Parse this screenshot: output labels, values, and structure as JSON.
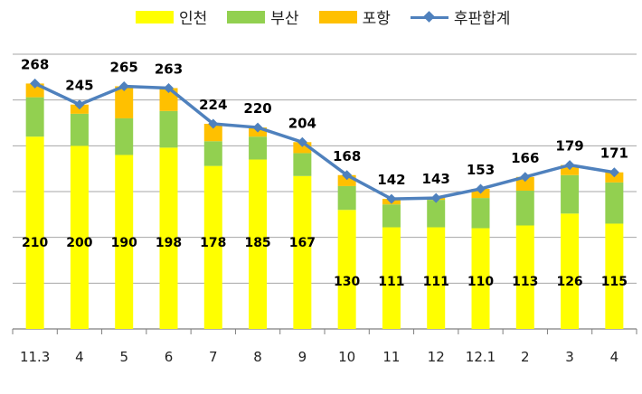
{
  "legend": {
    "incheon": "인천",
    "busan": "부산",
    "pohang": "포항",
    "total": "후판합계"
  },
  "colors": {
    "incheon": "#FFFF00",
    "busan": "#92D050",
    "pohang": "#FFC000",
    "total": "#4F81BD"
  },
  "chart_data": {
    "type": "bar",
    "stacked": true,
    "categories": [
      "11.3",
      "4",
      "5",
      "6",
      "7",
      "8",
      "9",
      "10",
      "11",
      "12",
      "12.1",
      "2",
      "3",
      "4"
    ],
    "series": [
      {
        "name": "인천",
        "values": [
          210,
          200,
          190,
          198,
          178,
          185,
          167,
          130,
          111,
          111,
          110,
          113,
          126,
          115
        ]
      },
      {
        "name": "부산",
        "values": [
          43,
          35,
          40,
          40,
          27,
          25,
          25,
          26,
          25,
          30,
          33,
          38,
          42,
          45
        ]
      },
      {
        "name": "포항",
        "values": [
          15,
          10,
          35,
          25,
          19,
          10,
          12,
          12,
          6,
          2,
          10,
          15,
          11,
          11
        ]
      }
    ],
    "line": {
      "name": "후판합계",
      "values": [
        268,
        245,
        265,
        263,
        224,
        220,
        204,
        168,
        142,
        143,
        153,
        166,
        179,
        171
      ]
    },
    "ylim": [
      0,
      300
    ],
    "grid": true,
    "legend_position": "top"
  }
}
